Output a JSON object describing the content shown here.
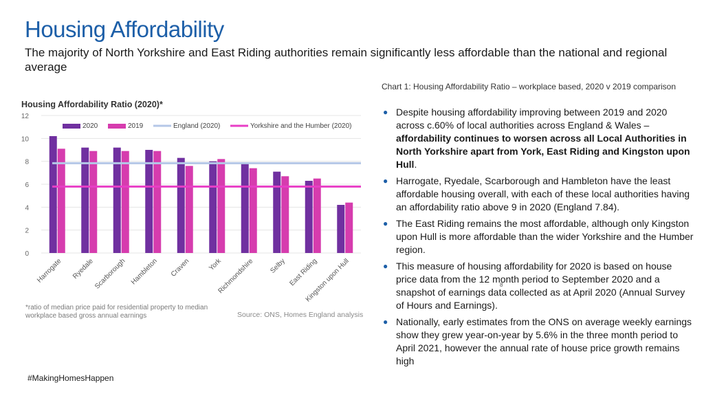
{
  "header": {
    "title": "Housing Affordability",
    "subtitle": "The majority of North Yorkshire and East Riding authorities remain significantly less affordable than the national and regional average"
  },
  "chart_data": {
    "type": "bar",
    "title": "Housing Affordability Ratio (2020)*",
    "categories": [
      "Harrogate",
      "Ryedale",
      "Scarborough",
      "Hambleton",
      "Craven",
      "York",
      "Richmondshire",
      "Selby",
      "East Riding",
      "Kingston upon Hull"
    ],
    "series": [
      {
        "name": "2020",
        "color": "#7030a0",
        "values": [
          10.2,
          9.2,
          9.2,
          9.0,
          8.3,
          8.0,
          7.8,
          7.1,
          6.3,
          4.2
        ]
      },
      {
        "name": "2019",
        "color": "#d63cae",
        "values": [
          9.1,
          8.9,
          8.9,
          8.9,
          7.6,
          8.2,
          7.4,
          6.7,
          6.5,
          4.4
        ]
      }
    ],
    "reference_lines": [
      {
        "name": "England (2020)",
        "value": 7.84,
        "color": "#b4c7e7"
      },
      {
        "name": "Yorkshire and the Humber (2020)",
        "value": 5.8,
        "color": "#e83ec6"
      }
    ],
    "ylim": [
      0,
      12
    ],
    "yticks": [
      0,
      2,
      4,
      6,
      8,
      10,
      12
    ],
    "xlabel": "",
    "ylabel": "",
    "gridlines": true,
    "legend_position": "top",
    "footnote": "*ratio of median price paid for residential property to median workplace based gross annual earnings",
    "source": "Source: ONS, Homes England analysis"
  },
  "caption": "Chart 1: Housing Affordability Ratio – workplace based, 2020 v 2019 comparison",
  "bullets": [
    {
      "parts": [
        {
          "text": "Despite housing affordability improving between 2019 and 2020 across c.60% of local authorities across England & Wales – ",
          "bold": false
        },
        {
          "text": "affordability continues to worsen across all Local Authorities in North Yorkshire apart from York, East Riding and Kingston upon Hull",
          "bold": true
        },
        {
          "text": ".",
          "bold": false
        }
      ]
    },
    {
      "parts": [
        {
          "text": "Harrogate, Ryedale, Scarborough and Hambleton have the least affordable housing overall, with each of these local authorities having an affordability ratio above 9 in 2020 (England 7.84).",
          "bold": false
        }
      ]
    },
    {
      "parts": [
        {
          "text": "The East Riding remains the most affordable, although only Kingston upon Hull is more affordable than the wider Yorkshire and the Humber region.",
          "bold": false
        }
      ]
    },
    {
      "parts": [
        {
          "text": "This measure of housing affordability for 2020 is based on house price data from the 12 month period to September 2020 and a snapshot of earnings data collected as at April 2020 (Annual Survey of Hours and Earnings).",
          "bold": false
        }
      ]
    },
    {
      "parts": [
        {
          "text": "Nationally, early estimates from the ONS on average weekly earnings show they grew year-on-year by 5.6% in the three month period to April 2021, however the annual rate of house price growth remains high",
          "bold": false
        }
      ]
    }
  ],
  "footer": {
    "hashtag": "#MakingHomesHappen",
    "page_number": "8"
  }
}
